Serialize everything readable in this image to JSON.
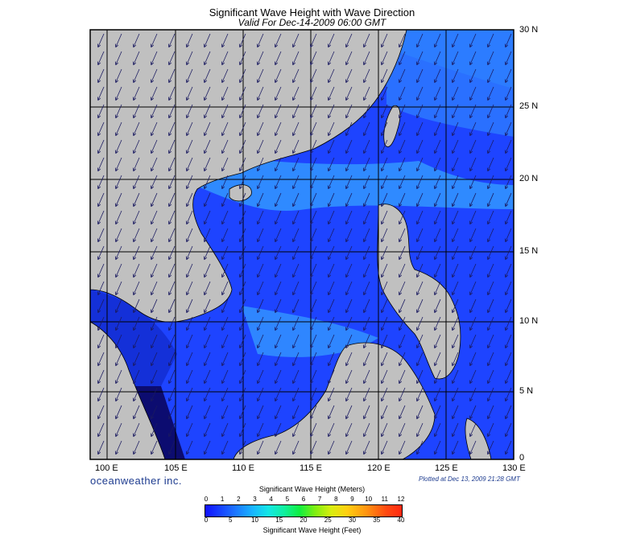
{
  "title": "Significant Wave Height with Wave Direction",
  "subtitle": "Valid For Dec-14-2009 06:00 GMT",
  "lat_labels": [
    "30 N",
    "25 N",
    "20 N",
    "15 N",
    "10 N",
    "5 N",
    "0"
  ],
  "lon_labels": [
    "100 E",
    "105 E",
    "110 E",
    "115 E",
    "120 E",
    "125 E",
    "130 E"
  ],
  "brand": "oceanweather inc.",
  "plotted": "Plotted at Dec 13, 2009 21:28 GMT",
  "colorbar": {
    "title_meters": "Significant Wave Height (Meters)",
    "title_feet": "Significant Wave Height (Feet)",
    "meters_ticks": [
      "0",
      "1",
      "2",
      "3",
      "4",
      "5",
      "6",
      "7",
      "8",
      "9",
      "10",
      "11",
      "12"
    ],
    "feet_ticks": [
      "0",
      "5",
      "10",
      "15",
      "20",
      "25",
      "30",
      "35",
      "40"
    ]
  },
  "colors": {
    "land": "#c0c0c0",
    "sea_low": "#1a3cff",
    "sea_mid": "#2c86ff",
    "deep": "#0a0a80",
    "arrow": "#1a1a60"
  },
  "map_extent": {
    "lon_min": 99,
    "lon_max": 130,
    "lat_min": 0,
    "lat_max": 30
  },
  "wave_direction": "toward south-west (north-east swell)"
}
